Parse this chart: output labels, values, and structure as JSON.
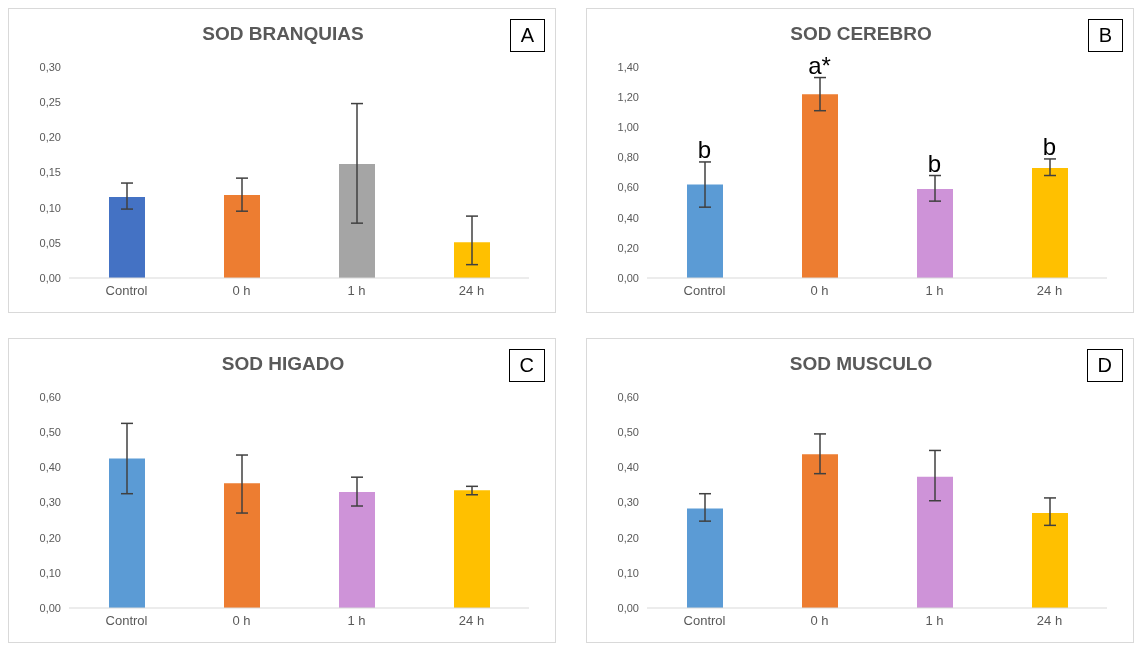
{
  "chart_data": [
    {
      "type": "bar",
      "title": "SOD BRANQUIAS",
      "categories": [
        "Control",
        "0 h",
        "1 h",
        "24 h"
      ],
      "values": [
        0.115,
        0.118,
        0.162,
        0.051
      ],
      "colors": [
        "#4472c4",
        "#ed7d31",
        "#a5a5a5",
        "#ffc000"
      ],
      "errors": [
        [
          0.098,
          0.135
        ],
        [
          0.095,
          0.142
        ],
        [
          0.078,
          0.248
        ],
        [
          0.019,
          0.088
        ]
      ],
      "ylim": [
        0,
        0.3
      ],
      "yticks": [
        {
          "value": 0,
          "label": "0,00"
        },
        {
          "value": 0.05,
          "label": "0,05"
        },
        {
          "value": 0.1,
          "label": "0,10"
        },
        {
          "value": 0.15,
          "label": "0,15"
        },
        {
          "value": 0.2,
          "label": "0,20"
        },
        {
          "value": 0.25,
          "label": "0,25"
        },
        {
          "value": 0.3,
          "label": "0,30"
        }
      ],
      "grid": false,
      "legend": false,
      "annotations": [
        "A"
      ]
    },
    {
      "type": "bar",
      "title": "SOD CEREBRO",
      "categories": [
        "Control",
        "0 h",
        "1 h",
        "24 h"
      ],
      "values": [
        0.62,
        1.22,
        0.59,
        0.73
      ],
      "colors": [
        "#5b9bd5",
        "#ed7d31",
        "#ce93d8",
        "#ffc000"
      ],
      "errors": [
        [
          0.47,
          0.77
        ],
        [
          1.11,
          1.33
        ],
        [
          0.51,
          0.68
        ],
        [
          0.68,
          0.79
        ]
      ],
      "ylim": [
        0,
        1.4
      ],
      "yticks": [
        {
          "value": 0,
          "label": "0,00"
        },
        {
          "value": 0.2,
          "label": "0,20"
        },
        {
          "value": 0.4,
          "label": "0,40"
        },
        {
          "value": 0.6,
          "label": "0,60"
        },
        {
          "value": 0.8,
          "label": "0,80"
        },
        {
          "value": 1,
          "label": "1,00"
        },
        {
          "value": 1.2,
          "label": "1,20"
        },
        {
          "value": 1.4,
          "label": "1,40"
        }
      ],
      "grid": false,
      "legend": false,
      "annotations": [
        "B",
        {
          "text": "b",
          "x": "Control",
          "y": 0.77
        },
        {
          "text": "a*",
          "x": "0 h",
          "y": 1.33
        },
        {
          "text": "b",
          "x": "1 h",
          "y": 0.68
        },
        {
          "text": "b",
          "x": "24 h",
          "y": 0.79
        }
      ]
    },
    {
      "type": "bar",
      "title": "SOD HIGADO",
      "categories": [
        "Control",
        "0 h",
        "1 h",
        "24 h"
      ],
      "values": [
        0.425,
        0.355,
        0.33,
        0.335
      ],
      "colors": [
        "#5b9bd5",
        "#ed7d31",
        "#ce93d8",
        "#ffc000"
      ],
      "errors": [
        [
          0.325,
          0.525
        ],
        [
          0.27,
          0.435
        ],
        [
          0.29,
          0.372
        ],
        [
          0.322,
          0.346
        ]
      ],
      "ylim": [
        0,
        0.6
      ],
      "yticks": [
        {
          "value": 0,
          "label": "0,00"
        },
        {
          "value": 0.1,
          "label": "0,10"
        },
        {
          "value": 0.2,
          "label": "0,20"
        },
        {
          "value": 0.3,
          "label": "0,30"
        },
        {
          "value": 0.4,
          "label": "0,40"
        },
        {
          "value": 0.5,
          "label": "0,50"
        },
        {
          "value": 0.6,
          "label": "0,60"
        }
      ],
      "grid": false,
      "legend": false,
      "annotations": [
        "C"
      ]
    },
    {
      "type": "bar",
      "title": "SOD MUSCULO",
      "categories": [
        "Control",
        "0 h",
        "1 h",
        "24 h"
      ],
      "values": [
        0.283,
        0.437,
        0.373,
        0.27
      ],
      "colors": [
        "#5b9bd5",
        "#ed7d31",
        "#ce93d8",
        "#ffc000"
      ],
      "errors": [
        [
          0.247,
          0.325
        ],
        [
          0.382,
          0.495
        ],
        [
          0.305,
          0.448
        ],
        [
          0.235,
          0.313
        ]
      ],
      "ylim": [
        0,
        0.6
      ],
      "yticks": [
        {
          "value": 0,
          "label": "0,00"
        },
        {
          "value": 0.1,
          "label": "0,10"
        },
        {
          "value": 0.2,
          "label": "0,20"
        },
        {
          "value": 0.3,
          "label": "0,30"
        },
        {
          "value": 0.4,
          "label": "0,40"
        },
        {
          "value": 0.5,
          "label": "0,50"
        },
        {
          "value": 0.6,
          "label": "0,60"
        }
      ],
      "grid": false,
      "legend": false,
      "annotations": [
        "D"
      ]
    }
  ]
}
